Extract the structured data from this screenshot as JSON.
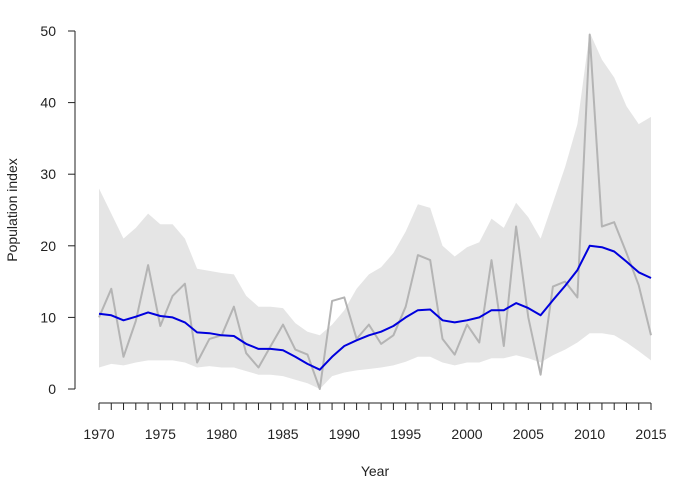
{
  "chart_data": {
    "type": "line",
    "title": "",
    "xlabel": "Year",
    "ylabel": "Population index",
    "xlim": [
      1970,
      2015
    ],
    "ylim": [
      0,
      50
    ],
    "x_ticks": [
      1970,
      1975,
      1980,
      1985,
      1990,
      1995,
      2000,
      2005,
      2010,
      2015
    ],
    "x_minor_step": 1,
    "y_ticks": [
      0,
      10,
      20,
      30,
      40,
      50
    ],
    "grid": false,
    "legend": "none",
    "colors": {
      "band": "#e5e5e5",
      "observed": "#b4b4b4",
      "trend": "#0000dd",
      "axis": "#222222"
    },
    "x": [
      1970,
      1971,
      1972,
      1973,
      1974,
      1975,
      1976,
      1977,
      1978,
      1979,
      1980,
      1981,
      1982,
      1983,
      1984,
      1985,
      1986,
      1987,
      1988,
      1989,
      1990,
      1991,
      1992,
      1993,
      1994,
      1995,
      1996,
      1997,
      1998,
      1999,
      2000,
      2001,
      2002,
      2003,
      2004,
      2005,
      2006,
      2007,
      2008,
      2009,
      2010,
      2011,
      2012,
      2013,
      2014,
      2015
    ],
    "series": [
      {
        "role": "band",
        "upper": [
          28.0,
          24.5,
          21.0,
          22.5,
          24.5,
          23.0,
          23.0,
          21.0,
          16.8,
          16.5,
          16.2,
          16.0,
          13.0,
          11.5,
          11.5,
          11.3,
          9.2,
          8.0,
          7.5,
          9.0,
          11.0,
          14.0,
          16.0,
          17.0,
          19.0,
          22.0,
          25.8,
          25.3,
          20.0,
          18.5,
          19.8,
          20.5,
          23.8,
          22.5,
          26.0,
          24.0,
          21.0,
          26.0,
          31.0,
          37.0,
          49.8,
          46.0,
          43.5,
          39.5,
          37.0,
          38.0
        ],
        "lower": [
          3.0,
          3.5,
          3.3,
          3.7,
          4.0,
          4.0,
          4.0,
          3.7,
          3.0,
          3.2,
          3.0,
          3.0,
          2.5,
          2.0,
          2.0,
          1.8,
          1.3,
          0.8,
          0.0,
          1.8,
          2.3,
          2.6,
          2.8,
          3.0,
          3.3,
          3.8,
          4.5,
          4.5,
          3.7,
          3.3,
          3.7,
          3.7,
          4.3,
          4.3,
          4.7,
          4.3,
          3.7,
          4.7,
          5.5,
          6.5,
          7.8,
          7.8,
          7.5,
          6.5,
          5.3,
          4.0
        ]
      },
      {
        "role": "observed",
        "values": [
          10.0,
          14.0,
          4.5,
          9.5,
          17.3,
          8.8,
          13.0,
          14.7,
          3.7,
          7.0,
          7.5,
          11.5,
          5.0,
          3.0,
          6.0,
          9.0,
          5.5,
          4.8,
          0.0,
          12.3,
          12.8,
          7.0,
          9.0,
          6.3,
          7.5,
          11.5,
          18.7,
          18.0,
          7.0,
          4.8,
          9.0,
          6.5,
          18.0,
          6.0,
          22.7,
          10.0,
          2.0,
          14.3,
          15.0,
          12.8,
          49.5,
          22.7,
          23.3,
          19.0,
          14.5,
          7.5
        ]
      },
      {
        "role": "trend",
        "values": [
          10.5,
          10.3,
          9.6,
          10.1,
          10.7,
          10.2,
          10.0,
          9.3,
          7.9,
          7.8,
          7.5,
          7.4,
          6.3,
          5.6,
          5.6,
          5.4,
          4.5,
          3.5,
          2.7,
          4.5,
          6.0,
          6.8,
          7.5,
          8.0,
          8.8,
          10.0,
          11.0,
          11.1,
          9.6,
          9.3,
          9.6,
          10.0,
          11.0,
          11.0,
          12.0,
          11.3,
          10.3,
          12.4,
          14.4,
          16.6,
          20.0,
          19.8,
          19.2,
          17.8,
          16.3,
          15.5
        ]
      }
    ]
  }
}
